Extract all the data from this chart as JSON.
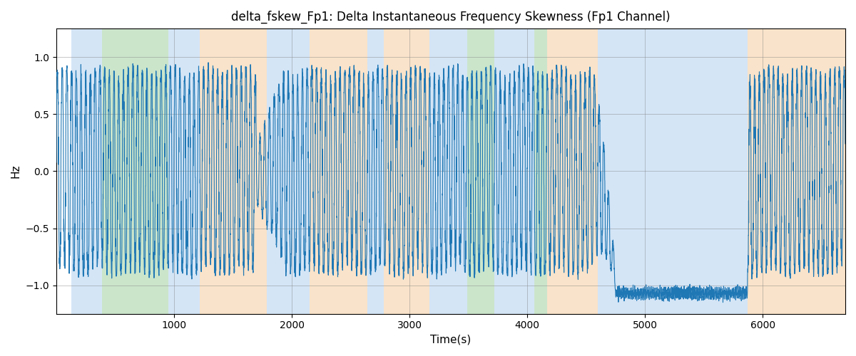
{
  "title": "delta_fskew_Fp1: Delta Instantaneous Frequency Skewness (Fp1 Channel)",
  "xlabel": "Time(s)",
  "ylabel": "Hz",
  "xlim": [
    0,
    6700
  ],
  "ylim": [
    -1.25,
    1.25
  ],
  "line_color": "#1f77b4",
  "line_width": 0.8,
  "figsize": [
    12,
    5
  ],
  "dpi": 100,
  "yticks": [
    -1.0,
    -0.5,
    0.0,
    0.5,
    1.0
  ],
  "xticks": [
    1000,
    2000,
    3000,
    4000,
    5000,
    6000
  ],
  "bg_regions": [
    {
      "xstart": 130,
      "xend": 390,
      "color": "#aaccee",
      "alpha": 0.5
    },
    {
      "xstart": 390,
      "xend": 950,
      "color": "#99cc99",
      "alpha": 0.5
    },
    {
      "xstart": 950,
      "xend": 1220,
      "color": "#aaccee",
      "alpha": 0.5
    },
    {
      "xstart": 1220,
      "xend": 1790,
      "color": "#f5c896",
      "alpha": 0.5
    },
    {
      "xstart": 1790,
      "xend": 2150,
      "color": "#aaccee",
      "alpha": 0.5
    },
    {
      "xstart": 2150,
      "xend": 2640,
      "color": "#f5c896",
      "alpha": 0.5
    },
    {
      "xstart": 2640,
      "xend": 2780,
      "color": "#aaccee",
      "alpha": 0.5
    },
    {
      "xstart": 2780,
      "xend": 3170,
      "color": "#f5c896",
      "alpha": 0.5
    },
    {
      "xstart": 3170,
      "xend": 3490,
      "color": "#aaccee",
      "alpha": 0.5
    },
    {
      "xstart": 3490,
      "xend": 3720,
      "color": "#99cc99",
      "alpha": 0.5
    },
    {
      "xstart": 3720,
      "xend": 4060,
      "color": "#aaccee",
      "alpha": 0.5
    },
    {
      "xstart": 4060,
      "xend": 4170,
      "color": "#99cc99",
      "alpha": 0.5
    },
    {
      "xstart": 4170,
      "xend": 4600,
      "color": "#f5c896",
      "alpha": 0.5
    },
    {
      "xstart": 4600,
      "xend": 4750,
      "color": "#aaccee",
      "alpha": 0.5
    },
    {
      "xstart": 4750,
      "xend": 5870,
      "color": "#aaccee",
      "alpha": 0.5
    },
    {
      "xstart": 5870,
      "xend": 6240,
      "color": "#f5c896",
      "alpha": 0.5
    },
    {
      "xstart": 6240,
      "xend": 6700,
      "color": "#f5c896",
      "alpha": 0.5
    }
  ],
  "seed": 42,
  "n_points": 6700,
  "quiet_start": 4750,
  "quiet_end": 5870,
  "quiet_level": -1.07,
  "quiet_ripple": 0.04,
  "active_period": 40,
  "active_noise": 0.12
}
